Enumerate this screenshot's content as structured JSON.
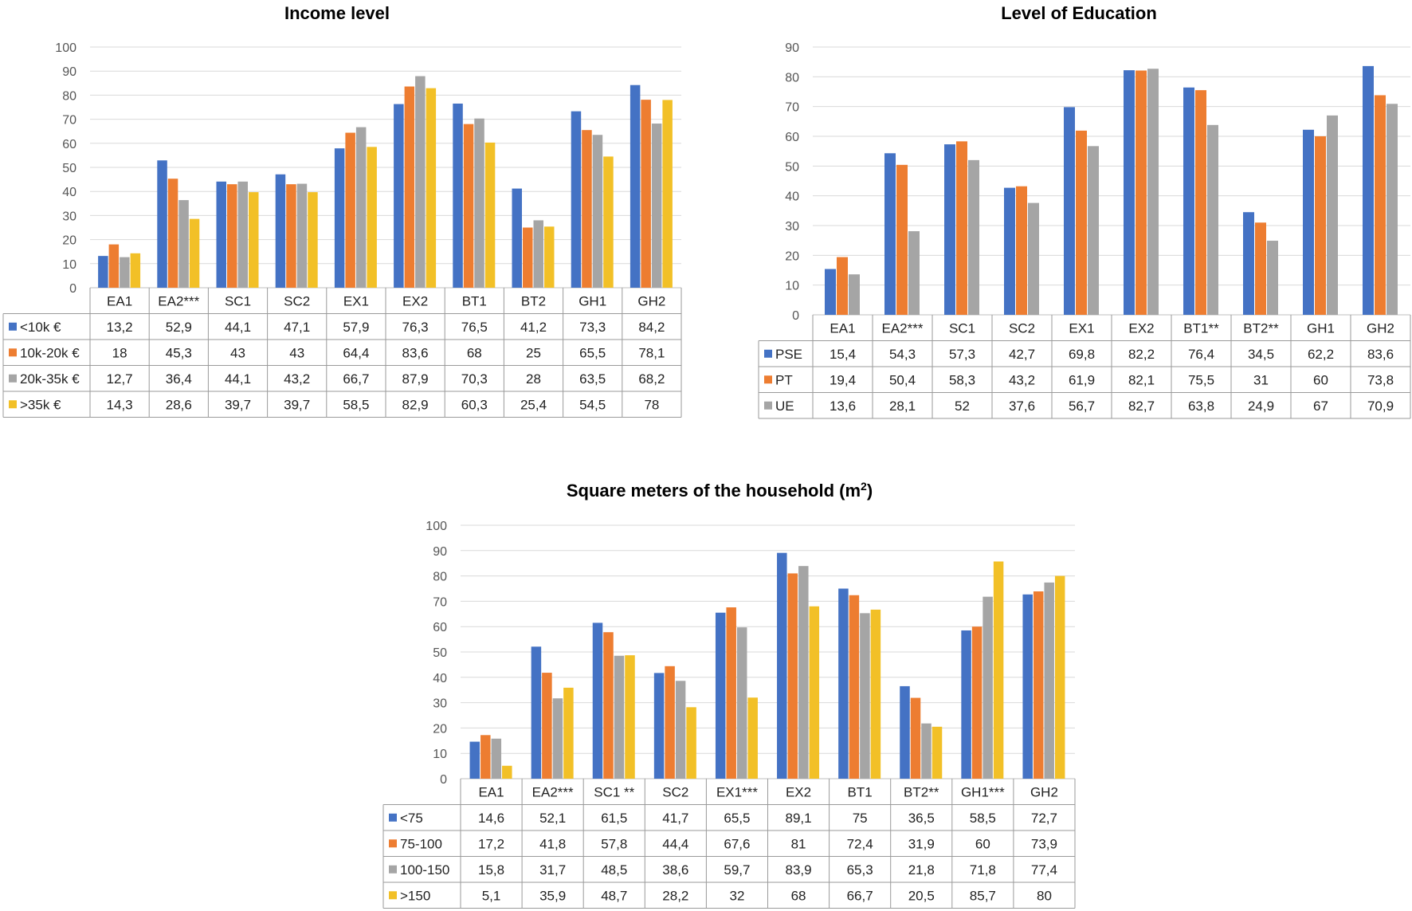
{
  "chart_data": [
    {
      "type": "bar",
      "title": "Income level",
      "ylim": [
        0,
        100
      ],
      "yticks": [
        0,
        10,
        20,
        30,
        40,
        50,
        60,
        70,
        80,
        90,
        100
      ],
      "grid": true,
      "legend": "data-table",
      "categories": [
        "EA1",
        "EA2***",
        "SC1",
        "SC2",
        "EX1",
        "EX2",
        "BT1",
        "BT2",
        "GH1",
        "GH2"
      ],
      "series": [
        {
          "name": "<10k €",
          "color": "#4472C4",
          "values": [
            13.2,
            52.9,
            44.1,
            47.1,
            57.9,
            76.3,
            76.5,
            41.2,
            73.3,
            84.2
          ],
          "labels": [
            "13,2",
            "52,9",
            "44,1",
            "47,1",
            "57,9",
            "76,3",
            "76,5",
            "41,2",
            "73,3",
            "84,2"
          ]
        },
        {
          "name": "10k-20k €",
          "color": "#ED7D31",
          "values": [
            18,
            45.3,
            43,
            43,
            64.4,
            83.6,
            68,
            25,
            65.5,
            78.1
          ],
          "labels": [
            "18",
            "45,3",
            "43",
            "43",
            "64,4",
            "83,6",
            "68",
            "25",
            "65,5",
            "78,1"
          ]
        },
        {
          "name": "20k-35k €",
          "color": "#A5A5A5",
          "values": [
            12.7,
            36.4,
            44.1,
            43.2,
            66.7,
            87.9,
            70.3,
            28,
            63.5,
            68.2
          ],
          "labels": [
            "12,7",
            "36,4",
            "44,1",
            "43,2",
            "66,7",
            "87,9",
            "70,3",
            "28",
            "63,5",
            "68,2"
          ]
        },
        {
          "name": ">35k €",
          "color": "#F2C027",
          "values": [
            14.3,
            28.6,
            39.7,
            39.7,
            58.5,
            82.9,
            60.3,
            25.4,
            54.5,
            78
          ],
          "labels": [
            "14,3",
            "28,6",
            "39,7",
            "39,7",
            "58,5",
            "82,9",
            "60,3",
            "25,4",
            "54,5",
            "78"
          ]
        }
      ]
    },
    {
      "type": "bar",
      "title": "Level of Education",
      "ylim": [
        0,
        90
      ],
      "yticks": [
        0,
        10,
        20,
        30,
        40,
        50,
        60,
        70,
        80,
        90
      ],
      "grid": true,
      "legend": "data-table",
      "categories": [
        "EA1",
        "EA2***",
        "SC1",
        "SC2",
        "EX1",
        "EX2",
        "BT1**",
        "BT2**",
        "GH1",
        "GH2"
      ],
      "series": [
        {
          "name": "PSE",
          "color": "#4472C4",
          "values": [
            15.4,
            54.3,
            57.3,
            42.7,
            69.8,
            82.2,
            76.4,
            34.5,
            62.2,
            83.6
          ],
          "labels": [
            "15,4",
            "54,3",
            "57,3",
            "42,7",
            "69,8",
            "82,2",
            "76,4",
            "34,5",
            "62,2",
            "83,6"
          ]
        },
        {
          "name": "PT",
          "color": "#ED7D31",
          "values": [
            19.4,
            50.4,
            58.3,
            43.2,
            61.9,
            82.1,
            75.5,
            31,
            60,
            73.8
          ],
          "labels": [
            "19,4",
            "50,4",
            "58,3",
            "43,2",
            "61,9",
            "82,1",
            "75,5",
            "31",
            "60",
            "73,8"
          ]
        },
        {
          "name": "UE",
          "color": "#A5A5A5",
          "values": [
            13.6,
            28.1,
            52,
            37.6,
            56.7,
            82.7,
            63.8,
            24.9,
            67,
            70.9
          ],
          "labels": [
            "13,6",
            "28,1",
            "52",
            "37,6",
            "56,7",
            "82,7",
            "63,8",
            "24,9",
            "67",
            "70,9"
          ]
        }
      ]
    },
    {
      "type": "bar",
      "title": "Square meters of the household (m",
      "title_sup": "2",
      "title_close": ")",
      "ylim": [
        0,
        100
      ],
      "yticks": [
        0,
        10,
        20,
        30,
        40,
        50,
        60,
        70,
        80,
        90,
        100
      ],
      "grid": true,
      "legend": "data-table",
      "categories": [
        "EA1",
        "EA2***",
        "SC1 **",
        "SC2",
        "EX1***",
        "EX2",
        "BT1",
        "BT2**",
        "GH1***",
        "GH2"
      ],
      "series": [
        {
          "name": "<75",
          "color": "#4472C4",
          "values": [
            14.6,
            52.1,
            61.5,
            41.7,
            65.5,
            89.1,
            75,
            36.5,
            58.5,
            72.7
          ],
          "labels": [
            "14,6",
            "52,1",
            "61,5",
            "41,7",
            "65,5",
            "89,1",
            "75",
            "36,5",
            "58,5",
            "72,7"
          ]
        },
        {
          "name": "75-100",
          "color": "#ED7D31",
          "values": [
            17.2,
            41.8,
            57.8,
            44.4,
            67.6,
            81,
            72.4,
            31.9,
            60,
            73.9
          ],
          "labels": [
            "17,2",
            "41,8",
            "57,8",
            "44,4",
            "67,6",
            "81",
            "72,4",
            "31,9",
            "60",
            "73,9"
          ]
        },
        {
          "name": "100-150",
          "color": "#A5A5A5",
          "values": [
            15.8,
            31.7,
            48.5,
            38.6,
            59.7,
            83.9,
            65.3,
            21.8,
            71.8,
            77.4
          ],
          "labels": [
            "15,8",
            "31,7",
            "48,5",
            "38,6",
            "59,7",
            "83,9",
            "65,3",
            "21,8",
            "71,8",
            "77,4"
          ]
        },
        {
          "name": ">150",
          "color": "#F2C027",
          "values": [
            5.1,
            35.9,
            48.7,
            28.2,
            32,
            68,
            66.7,
            20.5,
            85.7,
            80
          ],
          "labels": [
            "5,1",
            "35,9",
            "48,7",
            "28,2",
            "32",
            "68",
            "66,7",
            "20,5",
            "85,7",
            "80"
          ]
        }
      ]
    }
  ]
}
